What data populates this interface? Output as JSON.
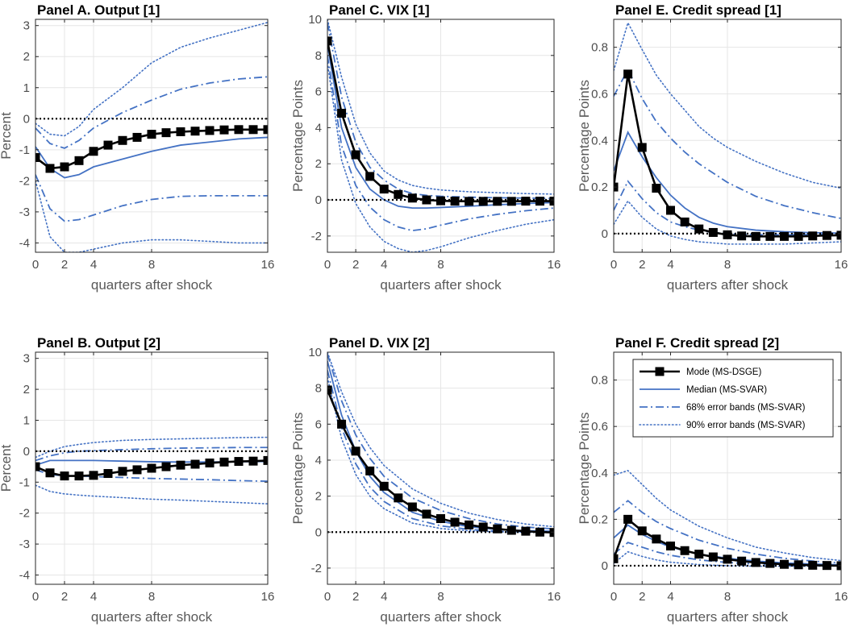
{
  "style": {
    "svar_color": "#4472c4",
    "dsge_color": "#000000",
    "grid_color": "#e6e6e6",
    "axis_color": "#262626",
    "tick_color": "#4d4d4d"
  },
  "legend": {
    "placement": "top-right of Panel F",
    "entries": [
      {
        "key": "mode",
        "label": "Mode (MS-DSGE)"
      },
      {
        "key": "median",
        "label": "Median (MS-SVAR)"
      },
      {
        "key": "band68",
        "label": "68% error bands (MS-SVAR)"
      },
      {
        "key": "band90",
        "label": "90% error bands (MS-SVAR)"
      }
    ]
  },
  "chart_data": [
    {
      "id": "A",
      "type": "line",
      "title": "Panel A. Output [1]",
      "xlabel": "quarters after shock",
      "ylabel": "Percent",
      "xlim": [
        0,
        16
      ],
      "ylim": [
        -4.3,
        3.2
      ],
      "grid": true,
      "xticks": [
        0,
        2,
        4,
        8,
        16
      ],
      "yticks": [
        -4,
        -3,
        -2,
        -1,
        0,
        1,
        2,
        3
      ],
      "zero_line": 0,
      "mode_x": [
        0,
        1,
        2,
        3,
        4,
        5,
        6,
        7,
        8,
        9,
        10,
        11,
        12,
        13,
        14,
        15,
        16
      ],
      "mode": [
        -1.25,
        -1.6,
        -1.55,
        -1.35,
        -1.05,
        -0.85,
        -0.7,
        -0.6,
        -0.5,
        -0.45,
        -0.42,
        -0.4,
        -0.38,
        -0.36,
        -0.35,
        -0.35,
        -0.35
      ],
      "curve_x": [
        0,
        1,
        2,
        3,
        4,
        6,
        8,
        10,
        12,
        14,
        16
      ],
      "median": [
        -0.9,
        -1.6,
        -1.9,
        -1.8,
        -1.55,
        -1.3,
        -1.05,
        -0.85,
        -0.75,
        -0.65,
        -0.6
      ],
      "band68_upper": [
        -0.3,
        -0.8,
        -0.95,
        -0.7,
        -0.3,
        0.2,
        0.6,
        0.95,
        1.15,
        1.28,
        1.35
      ],
      "band68_lower": [
        -1.8,
        -2.9,
        -3.3,
        -3.25,
        -3.1,
        -2.8,
        -2.6,
        -2.5,
        -2.48,
        -2.48,
        -2.48
      ],
      "band90_upper": [
        -0.15,
        -0.5,
        -0.55,
        -0.25,
        0.3,
        1.0,
        1.8,
        2.3,
        2.6,
        2.85,
        3.1
      ],
      "band90_lower": [
        -2.0,
        -3.8,
        -4.3,
        -4.3,
        -4.2,
        -4.0,
        -3.9,
        -3.9,
        -3.95,
        -4.0,
        -4.0
      ]
    },
    {
      "id": "B",
      "type": "line",
      "title": "Panel B. Output [2]",
      "xlabel": "quarters after shock",
      "ylabel": "Percent",
      "xlim": [
        0,
        16
      ],
      "ylim": [
        -4.3,
        3.2
      ],
      "grid": true,
      "xticks": [
        0,
        2,
        4,
        8,
        16
      ],
      "yticks": [
        -4,
        -3,
        -2,
        -1,
        0,
        1,
        2,
        3
      ],
      "zero_line": 0,
      "mode_x": [
        0,
        1,
        2,
        3,
        4,
        5,
        6,
        7,
        8,
        9,
        10,
        11,
        12,
        13,
        14,
        15,
        16
      ],
      "mode": [
        -0.5,
        -0.7,
        -0.8,
        -0.8,
        -0.78,
        -0.72,
        -0.65,
        -0.6,
        -0.55,
        -0.5,
        -0.45,
        -0.42,
        -0.38,
        -0.35,
        -0.33,
        -0.32,
        -0.3
      ],
      "curve_x": [
        0,
        1,
        2,
        3,
        4,
        6,
        8,
        10,
        12,
        14,
        16
      ],
      "median": [
        -0.45,
        -0.3,
        -0.3,
        -0.3,
        -0.3,
        -0.32,
        -0.34,
        -0.35,
        -0.35,
        -0.34,
        -0.33
      ],
      "band68_upper": [
        -0.3,
        -0.15,
        -0.05,
        0.0,
        0.02,
        0.05,
        0.08,
        0.1,
        0.11,
        0.12,
        0.12
      ],
      "band68_lower": [
        -0.6,
        -0.75,
        -0.8,
        -0.8,
        -0.82,
        -0.85,
        -0.88,
        -0.9,
        -0.92,
        -0.95,
        -0.97
      ],
      "band90_upper": [
        -0.2,
        0.0,
        0.15,
        0.22,
        0.28,
        0.35,
        0.38,
        0.4,
        0.42,
        0.44,
        0.45
      ],
      "band90_lower": [
        -1.1,
        -1.3,
        -1.38,
        -1.42,
        -1.45,
        -1.5,
        -1.55,
        -1.58,
        -1.62,
        -1.66,
        -1.7
      ]
    },
    {
      "id": "C",
      "type": "line",
      "title": "Panel C. VIX [1]",
      "xlabel": "quarters after shock",
      "ylabel": "Percentage Points",
      "xlim": [
        0,
        16
      ],
      "ylim": [
        -2.9,
        10
      ],
      "grid": true,
      "xticks": [
        0,
        2,
        4,
        8,
        16
      ],
      "yticks": [
        -2,
        0,
        2,
        4,
        6,
        8,
        10
      ],
      "zero_line": 0,
      "mode_x": [
        0,
        1,
        2,
        3,
        4,
        5,
        6,
        7,
        8,
        9,
        10,
        11,
        12,
        13,
        14,
        15,
        16
      ],
      "mode": [
        8.8,
        4.8,
        2.5,
        1.3,
        0.6,
        0.3,
        0.1,
        0.0,
        -0.05,
        -0.07,
        -0.08,
        -0.08,
        -0.08,
        -0.08,
        -0.07,
        -0.07,
        -0.07
      ],
      "curve_x": [
        0,
        1,
        2,
        3,
        4,
        5,
        6,
        7,
        8,
        10,
        12,
        14,
        16
      ],
      "median": [
        8.6,
        4.0,
        1.8,
        0.6,
        0.0,
        -0.35,
        -0.45,
        -0.45,
        -0.42,
        -0.35,
        -0.27,
        -0.2,
        -0.15
      ],
      "band68_upper": [
        9.8,
        5.7,
        3.2,
        1.8,
        1.1,
        0.6,
        0.35,
        0.25,
        0.2,
        0.15,
        0.12,
        0.1,
        0.08
      ],
      "band68_lower": [
        8.0,
        3.0,
        0.8,
        -0.4,
        -1.1,
        -1.5,
        -1.7,
        -1.6,
        -1.4,
        -1.05,
        -0.8,
        -0.6,
        -0.45
      ],
      "band90_upper": [
        10.0,
        6.8,
        4.2,
        2.6,
        1.6,
        1.1,
        0.8,
        0.65,
        0.55,
        0.45,
        0.4,
        0.35,
        0.32
      ],
      "band90_lower": [
        7.6,
        2.2,
        -0.2,
        -1.5,
        -2.3,
        -2.7,
        -2.9,
        -2.8,
        -2.6,
        -2.1,
        -1.7,
        -1.35,
        -1.1
      ]
    },
    {
      "id": "D",
      "type": "line",
      "title": "Panel D. VIX [2]",
      "xlabel": "quarters after shock",
      "ylabel": "Percentage Points",
      "xlim": [
        0,
        16
      ],
      "ylim": [
        -2.9,
        10
      ],
      "grid": true,
      "xticks": [
        0,
        2,
        4,
        8,
        16
      ],
      "yticks": [
        -2,
        0,
        2,
        4,
        6,
        8,
        10
      ],
      "zero_line": 0,
      "mode_x": [
        0,
        1,
        2,
        3,
        4,
        5,
        6,
        7,
        8,
        9,
        10,
        11,
        12,
        13,
        14,
        15,
        16
      ],
      "mode": [
        7.9,
        6.0,
        4.5,
        3.4,
        2.55,
        1.9,
        1.4,
        1.0,
        0.75,
        0.55,
        0.4,
        0.28,
        0.18,
        0.1,
        0.05,
        0.0,
        -0.02
      ],
      "curve_x": [
        0,
        1,
        2,
        3,
        4,
        6,
        8,
        10,
        12,
        14,
        16
      ],
      "median": [
        9.5,
        6.5,
        4.5,
        3.1,
        2.2,
        1.1,
        0.6,
        0.3,
        0.15,
        0.08,
        0.05
      ],
      "band68_upper": [
        9.9,
        7.3,
        5.4,
        4.1,
        3.1,
        1.9,
        1.2,
        0.75,
        0.45,
        0.28,
        0.18
      ],
      "band68_lower": [
        9.0,
        5.8,
        3.8,
        2.5,
        1.7,
        0.75,
        0.35,
        0.15,
        0.05,
        0.01,
        0.0
      ],
      "band90_upper": [
        10.0,
        7.8,
        6.0,
        4.7,
        3.7,
        2.4,
        1.6,
        1.05,
        0.7,
        0.45,
        0.3
      ],
      "band90_lower": [
        8.6,
        5.2,
        3.2,
        2.0,
        1.3,
        0.5,
        0.2,
        0.07,
        0.02,
        0.0,
        -0.01
      ]
    },
    {
      "id": "E",
      "type": "line",
      "title": "Panel E. Credit spread [1]",
      "xlabel": "quarters after shock",
      "ylabel": "Percentage Points",
      "xlim": [
        0,
        16
      ],
      "ylim": [
        -0.08,
        0.92
      ],
      "grid": true,
      "xticks": [
        0,
        2,
        4,
        8,
        16
      ],
      "yticks": [
        0,
        0.2,
        0.4,
        0.6,
        0.8
      ],
      "zero_line": 0,
      "mode_x": [
        0,
        1,
        2,
        3,
        4,
        5,
        6,
        7,
        8,
        9,
        10,
        11,
        12,
        13,
        14,
        15,
        16
      ],
      "mode": [
        0.2,
        0.685,
        0.37,
        0.195,
        0.1,
        0.05,
        0.02,
        0.005,
        -0.005,
        -0.01,
        -0.012,
        -0.012,
        -0.012,
        -0.012,
        -0.01,
        -0.008,
        -0.007
      ],
      "curve_x": [
        0,
        1,
        2,
        3,
        4,
        5,
        6,
        7,
        8,
        10,
        12,
        14,
        16
      ],
      "median": [
        0.27,
        0.435,
        0.33,
        0.24,
        0.165,
        0.11,
        0.07,
        0.045,
        0.03,
        0.015,
        0.008,
        0.004,
        0.002
      ],
      "band68_upper": [
        0.59,
        0.705,
        0.58,
        0.48,
        0.41,
        0.35,
        0.3,
        0.26,
        0.22,
        0.16,
        0.12,
        0.09,
        0.065
      ],
      "band68_lower": [
        0.1,
        0.225,
        0.15,
        0.09,
        0.05,
        0.03,
        0.015,
        0.005,
        0.0,
        -0.005,
        -0.005,
        -0.004,
        -0.003
      ],
      "band90_upper": [
        0.7,
        0.905,
        0.79,
        0.68,
        0.6,
        0.53,
        0.46,
        0.41,
        0.37,
        0.31,
        0.26,
        0.22,
        0.195
      ],
      "band90_lower": [
        0.04,
        0.14,
        0.07,
        0.02,
        -0.01,
        -0.025,
        -0.035,
        -0.04,
        -0.045,
        -0.045,
        -0.045,
        -0.04,
        -0.035
      ]
    },
    {
      "id": "F",
      "type": "line",
      "title": "Panel F. Credit spread [2]",
      "xlabel": "quarters after shock",
      "ylabel": "Percentage Points",
      "xlim": [
        0,
        16
      ],
      "ylim": [
        -0.08,
        0.92
      ],
      "grid": true,
      "xticks": [
        0,
        2,
        4,
        8,
        16
      ],
      "yticks": [
        0,
        0.2,
        0.4,
        0.6,
        0.8
      ],
      "zero_line": 0,
      "mode_x": [
        0,
        1,
        2,
        3,
        4,
        5,
        6,
        7,
        8,
        9,
        10,
        11,
        12,
        13,
        14,
        15,
        16
      ],
      "mode": [
        0.03,
        0.2,
        0.15,
        0.115,
        0.085,
        0.065,
        0.05,
        0.038,
        0.028,
        0.02,
        0.014,
        0.01,
        0.006,
        0.004,
        0.002,
        0.001,
        0.0
      ],
      "curve_x": [
        0,
        1,
        2,
        3,
        4,
        6,
        8,
        10,
        12,
        14,
        16
      ],
      "median": [
        0.12,
        0.175,
        0.135,
        0.105,
        0.08,
        0.05,
        0.032,
        0.02,
        0.012,
        0.007,
        0.004
      ],
      "band68_upper": [
        0.23,
        0.28,
        0.23,
        0.19,
        0.16,
        0.11,
        0.075,
        0.05,
        0.032,
        0.02,
        0.012
      ],
      "band68_lower": [
        0.05,
        0.1,
        0.08,
        0.06,
        0.045,
        0.025,
        0.014,
        0.007,
        0.003,
        0.001,
        0.0
      ],
      "band90_upper": [
        0.39,
        0.41,
        0.35,
        0.29,
        0.24,
        0.17,
        0.12,
        0.08,
        0.055,
        0.035,
        0.022
      ],
      "band90_lower": [
        0.01,
        0.06,
        0.04,
        0.025,
        0.015,
        0.005,
        0.0,
        -0.002,
        -0.002,
        -0.002,
        -0.001
      ]
    }
  ]
}
